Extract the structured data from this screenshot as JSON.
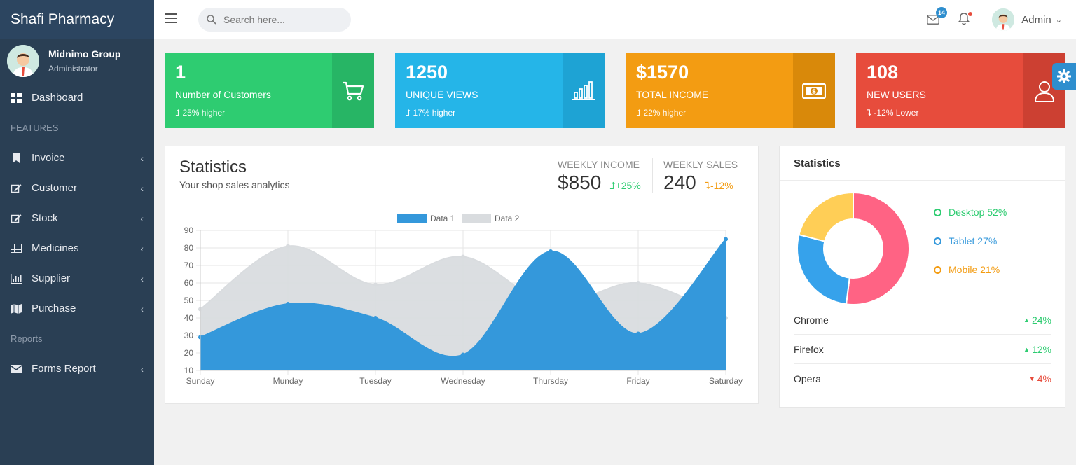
{
  "brand": "Shafi Pharmacy",
  "profile": {
    "name": "Midnimo Group",
    "role": "Administrator"
  },
  "sidebar": {
    "items": [
      {
        "label": "Dashboard",
        "icon": "dashboard-icon"
      },
      {
        "section": "FEATURES"
      },
      {
        "label": "Invoice",
        "icon": "bookmark-icon"
      },
      {
        "label": "Customer",
        "icon": "edit-icon"
      },
      {
        "label": "Stock",
        "icon": "edit-icon"
      },
      {
        "label": "Medicines",
        "icon": "table-icon"
      },
      {
        "label": "Supplier",
        "icon": "bar-chart-icon"
      },
      {
        "label": "Purchase",
        "icon": "map-icon"
      },
      {
        "section": "Reports"
      },
      {
        "label": "Forms Report",
        "icon": "envelope-icon"
      }
    ]
  },
  "topbar": {
    "search_placeholder": "Search here...",
    "mail_badge": "14",
    "user": "Admin"
  },
  "kpis": [
    {
      "value": "1",
      "label": "Number of Customers",
      "delta": "25% higher",
      "direction": "up",
      "color": "#2ecc71",
      "icon_bg": "#27b565",
      "icon": "cart-icon"
    },
    {
      "value": "1250",
      "label": "UNIQUE VIEWS",
      "delta": "17% higher",
      "direction": "up",
      "color": "#25b5e8",
      "icon_bg": "#1ea3d4",
      "icon": "bar-chart-icon"
    },
    {
      "value": "$1570",
      "label": "TOTAL INCOME",
      "delta": "22% higher",
      "direction": "up",
      "color": "#f39c12",
      "icon_bg": "#d9890a",
      "icon": "money-icon"
    },
    {
      "value": "108",
      "label": "NEW USERS",
      "delta": "-12% Lower",
      "direction": "down",
      "color": "#e74c3c",
      "icon_bg": "#cc4032",
      "icon": "user-icon"
    }
  ],
  "statistics": {
    "title": "Statistics",
    "subtitle": "Your shop sales analytics",
    "weekly_income": {
      "label": "WEEKLY INCOME",
      "value": "$850",
      "delta": "+25%",
      "color": "#2ecc71"
    },
    "weekly_sales": {
      "label": "WEEKLY SALES",
      "value": "240",
      "delta": "-12%",
      "color": "#f39c12"
    }
  },
  "chart_data": {
    "type": "area",
    "categories": [
      "Sunday",
      "Munday",
      "Tuesday",
      "Wednesday",
      "Thursday",
      "Friday",
      "Saturday"
    ],
    "series": [
      {
        "name": "Data 1",
        "values": [
          29,
          48,
          40,
          19,
          78,
          31,
          85
        ],
        "color": "#3498db"
      },
      {
        "name": "Data 2",
        "values": [
          45,
          81,
          59,
          75,
          48,
          60,
          40
        ],
        "color": "#d9dcdf"
      }
    ],
    "ylim": [
      10,
      90
    ],
    "yticks": [
      10,
      20,
      30,
      40,
      50,
      60,
      70,
      80,
      90
    ],
    "legend": "top",
    "grid": true
  },
  "side_panel": {
    "title": "Statistics",
    "donut": [
      {
        "label": "Desktop 52%",
        "value": 52,
        "color": "#ff6384"
      },
      {
        "label": "Tablet 27%",
        "value": 27,
        "color": "#36a2eb"
      },
      {
        "label": "Mobile 21%",
        "value": 21,
        "color": "#ffce56"
      }
    ],
    "legend_colors": [
      "#2ecc71",
      "#3498db",
      "#f39c12"
    ],
    "browsers": [
      {
        "name": "Chrome",
        "delta": "24%",
        "direction": "up",
        "color": "#2ecc71"
      },
      {
        "name": "Firefox",
        "delta": "12%",
        "direction": "up",
        "color": "#2ecc71"
      },
      {
        "name": "Opera",
        "delta": "4%",
        "direction": "down",
        "color": "#e74c3c"
      }
    ]
  }
}
